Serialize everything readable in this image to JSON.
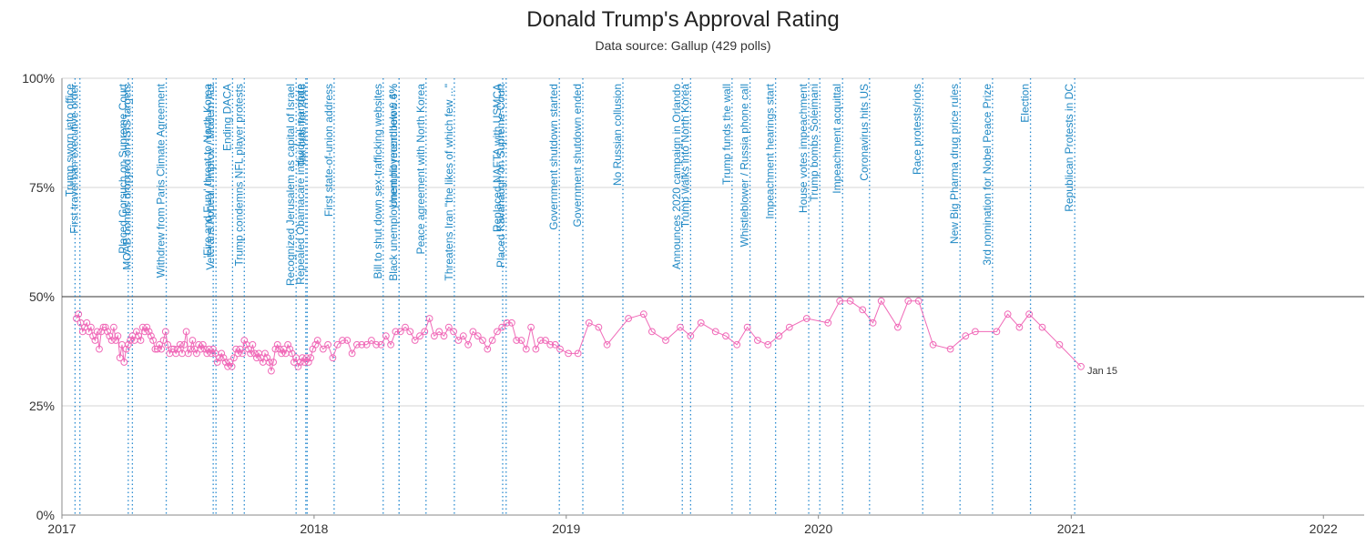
{
  "title": "Donald Trump's Approval Rating",
  "subtitle": "Data source: Gallup (429 polls)",
  "colors": {
    "series": "#f06ab8",
    "event_line": "#2a8bd0",
    "event_text": "#1f88c4",
    "reference_line": "#333333",
    "grid": "#d4d4d4"
  },
  "chart_data": {
    "type": "line",
    "xlim": [
      "2017-01-01",
      "2022-03-01"
    ],
    "ylim": [
      0,
      100
    ],
    "x_ticks": [
      {
        "date": "2017-01-01",
        "label": "2017"
      },
      {
        "date": "2018-01-01",
        "label": "2018"
      },
      {
        "date": "2019-01-01",
        "label": "2019"
      },
      {
        "date": "2020-01-01",
        "label": "2020"
      },
      {
        "date": "2021-01-01",
        "label": "2021"
      },
      {
        "date": "2022-01-01",
        "label": "2022"
      }
    ],
    "y_ticks": [
      {
        "value": 0,
        "label": "0%"
      },
      {
        "value": 25,
        "label": "25%"
      },
      {
        "value": 50,
        "label": "50%"
      },
      {
        "value": 75,
        "label": "75%"
      },
      {
        "value": 100,
        "label": "100%"
      }
    ],
    "grid": true,
    "reference_line": 50,
    "end_label": "Jan 15",
    "events": [
      {
        "date": "2017-01-20",
        "label": "Trump sworn into office"
      },
      {
        "date": "2017-01-27",
        "label": "First travel ban executive order"
      },
      {
        "date": "2017-04-07",
        "label": "Placed Gorsuch on Supreme Court"
      },
      {
        "date": "2017-04-13",
        "label": "MOAB bombs dropped on ISIS targets"
      },
      {
        "date": "2017-06-01",
        "label": "Withdrew from Paris Climate Agreement"
      },
      {
        "date": "2017-08-08",
        "label": "'Fire and Fury' threat to North Korea"
      },
      {
        "date": "2017-08-12",
        "label": "Veterans Appeal / Improv / Modern Act"
      },
      {
        "date": "2017-09-05",
        "label": "Ending DACA"
      },
      {
        "date": "2017-09-22",
        "label": "Trump condemns NFL player protests"
      },
      {
        "date": "2017-12-06",
        "label": "Recognized Jerusalem as capital of Israel"
      },
      {
        "date": "2017-12-20",
        "label": "Repealed Obamacare individual mandate"
      },
      {
        "date": "2017-12-22",
        "label": "Tax cuts for 2018"
      },
      {
        "date": "2018-01-30",
        "label": "First state-of-union address"
      },
      {
        "date": "2018-04-11",
        "label": "Bill to shut down sex-trafficking websites"
      },
      {
        "date": "2018-05-04",
        "label": "Black unemployment hit record low 6.6%"
      },
      {
        "date": "2018-05-04",
        "label": "Unemployment below 4%"
      },
      {
        "date": "2018-06-12",
        "label": "Peace agreement with North Korea"
      },
      {
        "date": "2018-07-23",
        "label": "Threatens Iran \"the likes of which few ...\""
      },
      {
        "date": "2018-10-01",
        "label": "Replaced NAFTA with USMCA"
      },
      {
        "date": "2018-10-06",
        "label": "Placed Kavanaugh on Supreme Court"
      },
      {
        "date": "2018-12-22",
        "label": "Government shutdown started"
      },
      {
        "date": "2019-01-25",
        "label": "Government shutdown ended"
      },
      {
        "date": "2019-03-24",
        "label": "No Russian collusion"
      },
      {
        "date": "2019-06-18",
        "label": "Announces 2020 campaign in Orlando"
      },
      {
        "date": "2019-06-30",
        "label": "Trump walks into North Korea"
      },
      {
        "date": "2019-08-29",
        "label": "Trump funds the wall"
      },
      {
        "date": "2019-09-24",
        "label": "Whistleblower / Russia phone call"
      },
      {
        "date": "2019-10-31",
        "label": "Impeachment hearings start"
      },
      {
        "date": "2019-12-18",
        "label": "House votes impeachment"
      },
      {
        "date": "2020-01-03",
        "label": "Trump bombs Soleimani"
      },
      {
        "date": "2020-02-05",
        "label": "Impeachment acquittal"
      },
      {
        "date": "2020-03-15",
        "label": "Coronavirus hits US"
      },
      {
        "date": "2020-05-31",
        "label": "Race protests/riots"
      },
      {
        "date": "2020-07-24",
        "label": "New Big Pharma drug price rules"
      },
      {
        "date": "2020-09-09",
        "label": "3rd nomination for Nobel Peace Prize"
      },
      {
        "date": "2020-11-03",
        "label": "Election"
      },
      {
        "date": "2021-01-06",
        "label": "Republican Protests in DC"
      }
    ],
    "series": [
      {
        "points": [
          [
            "2017-01-22",
            45
          ],
          [
            "2017-01-25",
            46
          ],
          [
            "2017-01-28",
            44
          ],
          [
            "2017-01-31",
            42
          ],
          [
            "2017-02-03",
            43
          ],
          [
            "2017-02-06",
            44
          ],
          [
            "2017-02-09",
            42
          ],
          [
            "2017-02-12",
            43
          ],
          [
            "2017-02-15",
            41
          ],
          [
            "2017-02-18",
            40
          ],
          [
            "2017-02-21",
            42
          ],
          [
            "2017-02-24",
            38
          ],
          [
            "2017-02-27",
            42
          ],
          [
            "2017-03-02",
            43
          ],
          [
            "2017-03-05",
            43
          ],
          [
            "2017-03-08",
            42
          ],
          [
            "2017-03-11",
            41
          ],
          [
            "2017-03-14",
            40
          ],
          [
            "2017-03-17",
            43
          ],
          [
            "2017-03-20",
            40
          ],
          [
            "2017-03-23",
            41
          ],
          [
            "2017-03-26",
            36
          ],
          [
            "2017-03-29",
            39
          ],
          [
            "2017-04-01",
            35
          ],
          [
            "2017-04-04",
            38
          ],
          [
            "2017-04-07",
            39
          ],
          [
            "2017-04-10",
            40
          ],
          [
            "2017-04-13",
            41
          ],
          [
            "2017-04-16",
            40
          ],
          [
            "2017-04-19",
            42
          ],
          [
            "2017-04-22",
            41
          ],
          [
            "2017-04-25",
            40
          ],
          [
            "2017-04-28",
            43
          ],
          [
            "2017-05-01",
            42
          ],
          [
            "2017-05-04",
            43
          ],
          [
            "2017-05-07",
            42
          ],
          [
            "2017-05-10",
            41
          ],
          [
            "2017-05-13",
            40
          ],
          [
            "2017-05-16",
            38
          ],
          [
            "2017-05-19",
            38
          ],
          [
            "2017-05-22",
            39
          ],
          [
            "2017-05-25",
            38
          ],
          [
            "2017-05-28",
            40
          ],
          [
            "2017-05-31",
            42
          ],
          [
            "2017-06-03",
            39
          ],
          [
            "2017-06-06",
            37
          ],
          [
            "2017-06-09",
            38
          ],
          [
            "2017-06-12",
            38
          ],
          [
            "2017-06-15",
            37
          ],
          [
            "2017-06-18",
            38
          ],
          [
            "2017-06-21",
            39
          ],
          [
            "2017-06-24",
            37
          ],
          [
            "2017-06-27",
            39
          ],
          [
            "2017-06-30",
            42
          ],
          [
            "2017-07-03",
            37
          ],
          [
            "2017-07-06",
            38
          ],
          [
            "2017-07-09",
            40
          ],
          [
            "2017-07-12",
            38
          ],
          [
            "2017-07-15",
            37
          ],
          [
            "2017-07-18",
            39
          ],
          [
            "2017-07-21",
            38
          ],
          [
            "2017-07-24",
            39
          ],
          [
            "2017-07-27",
            38
          ],
          [
            "2017-07-30",
            37
          ],
          [
            "2017-08-02",
            38
          ],
          [
            "2017-08-05",
            37
          ],
          [
            "2017-08-08",
            38
          ],
          [
            "2017-08-11",
            37
          ],
          [
            "2017-08-14",
            35
          ],
          [
            "2017-08-17",
            36
          ],
          [
            "2017-08-20",
            37
          ],
          [
            "2017-08-23",
            36
          ],
          [
            "2017-08-26",
            35
          ],
          [
            "2017-08-29",
            34
          ],
          [
            "2017-09-01",
            35
          ],
          [
            "2017-09-04",
            34
          ],
          [
            "2017-09-07",
            36
          ],
          [
            "2017-09-10",
            38
          ],
          [
            "2017-09-13",
            37
          ],
          [
            "2017-09-16",
            38
          ],
          [
            "2017-09-19",
            37
          ],
          [
            "2017-09-22",
            40
          ],
          [
            "2017-09-25",
            39
          ],
          [
            "2017-09-28",
            38
          ],
          [
            "2017-10-01",
            37
          ],
          [
            "2017-10-04",
            39
          ],
          [
            "2017-10-07",
            37
          ],
          [
            "2017-10-10",
            36
          ],
          [
            "2017-10-13",
            37
          ],
          [
            "2017-10-16",
            36
          ],
          [
            "2017-10-19",
            35
          ],
          [
            "2017-10-22",
            37
          ],
          [
            "2017-10-25",
            36
          ],
          [
            "2017-10-28",
            35
          ],
          [
            "2017-10-31",
            33
          ],
          [
            "2017-11-03",
            35
          ],
          [
            "2017-11-06",
            38
          ],
          [
            "2017-11-09",
            39
          ],
          [
            "2017-11-12",
            38
          ],
          [
            "2017-11-15",
            37
          ],
          [
            "2017-11-18",
            38
          ],
          [
            "2017-11-21",
            37
          ],
          [
            "2017-11-24",
            39
          ],
          [
            "2017-11-27",
            38
          ],
          [
            "2017-11-30",
            37
          ],
          [
            "2017-12-03",
            35
          ],
          [
            "2017-12-06",
            36
          ],
          [
            "2017-12-09",
            34
          ],
          [
            "2017-12-12",
            35
          ],
          [
            "2017-12-15",
            36
          ],
          [
            "2017-12-18",
            35
          ],
          [
            "2017-12-21",
            36
          ],
          [
            "2017-12-24",
            35
          ],
          [
            "2017-12-27",
            36
          ],
          [
            "2017-12-30",
            38
          ],
          [
            "2018-01-03",
            39
          ],
          [
            "2018-01-06",
            40
          ],
          [
            "2018-01-14",
            38
          ],
          [
            "2018-01-21",
            39
          ],
          [
            "2018-01-28",
            36
          ],
          [
            "2018-02-04",
            39
          ],
          [
            "2018-02-11",
            40
          ],
          [
            "2018-02-18",
            40
          ],
          [
            "2018-02-25",
            37
          ],
          [
            "2018-03-04",
            39
          ],
          [
            "2018-03-11",
            39
          ],
          [
            "2018-03-18",
            39
          ],
          [
            "2018-03-25",
            40
          ],
          [
            "2018-04-01",
            39
          ],
          [
            "2018-04-08",
            39
          ],
          [
            "2018-04-15",
            41
          ],
          [
            "2018-04-22",
            39
          ],
          [
            "2018-04-29",
            42
          ],
          [
            "2018-05-06",
            42
          ],
          [
            "2018-05-13",
            43
          ],
          [
            "2018-05-20",
            42
          ],
          [
            "2018-05-27",
            40
          ],
          [
            "2018-06-03",
            41
          ],
          [
            "2018-06-10",
            42
          ],
          [
            "2018-06-17",
            45
          ],
          [
            "2018-06-24",
            41
          ],
          [
            "2018-07-01",
            42
          ],
          [
            "2018-07-08",
            41
          ],
          [
            "2018-07-15",
            43
          ],
          [
            "2018-07-22",
            42
          ],
          [
            "2018-07-29",
            40
          ],
          [
            "2018-08-05",
            41
          ],
          [
            "2018-08-12",
            39
          ],
          [
            "2018-08-19",
            42
          ],
          [
            "2018-08-26",
            41
          ],
          [
            "2018-09-02",
            40
          ],
          [
            "2018-09-09",
            38
          ],
          [
            "2018-09-16",
            40
          ],
          [
            "2018-09-23",
            42
          ],
          [
            "2018-09-30",
            43
          ],
          [
            "2018-10-07",
            44
          ],
          [
            "2018-10-14",
            44
          ],
          [
            "2018-10-21",
            40
          ],
          [
            "2018-10-28",
            40
          ],
          [
            "2018-11-04",
            38
          ],
          [
            "2018-11-11",
            43
          ],
          [
            "2018-11-18",
            38
          ],
          [
            "2018-11-25",
            40
          ],
          [
            "2018-12-02",
            40
          ],
          [
            "2018-12-09",
            39
          ],
          [
            "2018-12-16",
            39
          ],
          [
            "2018-12-23",
            38
          ],
          [
            "2019-01-04",
            37
          ],
          [
            "2019-01-18",
            37
          ],
          [
            "2019-02-03",
            44
          ],
          [
            "2019-02-17",
            43
          ],
          [
            "2019-03-01",
            39
          ],
          [
            "2019-04-01",
            45
          ],
          [
            "2019-04-23",
            46
          ],
          [
            "2019-05-05",
            42
          ],
          [
            "2019-05-25",
            40
          ],
          [
            "2019-06-15",
            43
          ],
          [
            "2019-06-30",
            41
          ],
          [
            "2019-07-15",
            44
          ],
          [
            "2019-08-05",
            42
          ],
          [
            "2019-08-20",
            41
          ],
          [
            "2019-09-05",
            39
          ],
          [
            "2019-09-20",
            43
          ],
          [
            "2019-10-05",
            40
          ],
          [
            "2019-10-20",
            39
          ],
          [
            "2019-11-05",
            41
          ],
          [
            "2019-11-20",
            43
          ],
          [
            "2019-12-15",
            45
          ],
          [
            "2020-01-15",
            44
          ],
          [
            "2020-02-01",
            49
          ],
          [
            "2020-02-16",
            49
          ],
          [
            "2020-03-05",
            47
          ],
          [
            "2020-03-20",
            44
          ],
          [
            "2020-04-01",
            49
          ],
          [
            "2020-04-25",
            43
          ],
          [
            "2020-05-10",
            49
          ],
          [
            "2020-05-25",
            49
          ],
          [
            "2020-06-15",
            39
          ],
          [
            "2020-07-10",
            38
          ],
          [
            "2020-08-01",
            41
          ],
          [
            "2020-08-15",
            42
          ],
          [
            "2020-09-15",
            42
          ],
          [
            "2020-10-01",
            46
          ],
          [
            "2020-10-18",
            43
          ],
          [
            "2020-11-01",
            46
          ],
          [
            "2020-11-20",
            43
          ],
          [
            "2020-12-15",
            39
          ],
          [
            "2021-01-15",
            34
          ]
        ]
      }
    ]
  }
}
